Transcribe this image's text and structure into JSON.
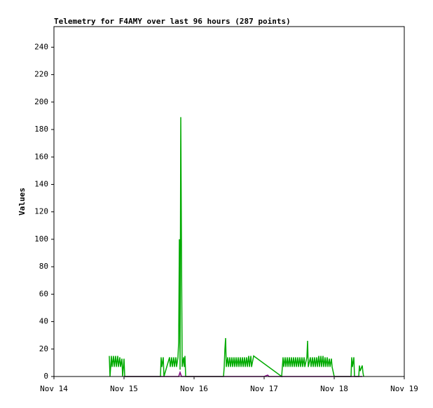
{
  "chart_data": {
    "type": "line",
    "title": "Telemetry for F4AMY over last 96 hours (287 points)",
    "y_label": "Values",
    "xlim": [
      14,
      19
    ],
    "xticks": [
      {
        "value": 14,
        "label": "Nov 14"
      },
      {
        "value": 15,
        "label": "Nov 15"
      },
      {
        "value": 16,
        "label": "Nov 16"
      },
      {
        "value": 17,
        "label": "Nov 17"
      },
      {
        "value": 18,
        "label": "Nov 18"
      },
      {
        "value": 19,
        "label": "Nov 19"
      }
    ],
    "ylim": [
      0,
      255
    ],
    "yticks": [
      0,
      20,
      40,
      60,
      80,
      100,
      120,
      140,
      160,
      180,
      200,
      220,
      240
    ],
    "series": [
      {
        "color": "#00aa00",
        "x": [
          14.79,
          14.8,
          14.82,
          14.83,
          14.85,
          14.86,
          14.88,
          14.89,
          14.91,
          14.92,
          14.94,
          14.95,
          14.97,
          14.98,
          15.0,
          15.01,
          15.52,
          15.53,
          15.54,
          15.56,
          15.57,
          15.65,
          15.66,
          15.68,
          15.69,
          15.71,
          15.72,
          15.74,
          15.75,
          15.77,
          15.78,
          15.79,
          15.8,
          15.81,
          15.82,
          15.83,
          15.85,
          15.86,
          15.87,
          15.88,
          16.42,
          16.43,
          16.44,
          16.45,
          16.46,
          16.48,
          16.49,
          16.51,
          16.52,
          16.54,
          16.55,
          16.57,
          16.58,
          16.6,
          16.61,
          16.63,
          16.64,
          16.66,
          16.67,
          16.69,
          16.7,
          16.72,
          16.73,
          16.75,
          16.76,
          16.78,
          16.79,
          16.81,
          16.82,
          16.85,
          17.25,
          17.27,
          17.28,
          17.3,
          17.31,
          17.33,
          17.34,
          17.36,
          17.37,
          17.39,
          17.4,
          17.42,
          17.43,
          17.45,
          17.46,
          17.48,
          17.49,
          17.51,
          17.52,
          17.54,
          17.55,
          17.57,
          17.58,
          17.61,
          17.62,
          17.63,
          17.66,
          17.67,
          17.69,
          17.7,
          17.72,
          17.73,
          17.75,
          17.76,
          17.78,
          17.79,
          17.81,
          17.82,
          17.84,
          17.85,
          17.87,
          17.88,
          17.9,
          17.91,
          17.93,
          17.94,
          17.96,
          17.97,
          18.0,
          18.24,
          18.25,
          18.26,
          18.28,
          18.29,
          18.35,
          18.36,
          18.37,
          18.4,
          18.41,
          18.42
        ],
        "values": [
          15,
          0,
          15,
          7,
          15,
          7,
          15,
          7,
          15,
          7,
          14,
          7,
          13,
          0,
          13,
          0,
          0,
          14,
          7,
          14,
          0,
          14,
          7,
          14,
          7,
          14,
          7,
          14,
          7,
          14,
          25,
          100,
          5,
          189,
          95,
          7,
          14,
          7,
          15,
          0,
          0,
          7,
          20,
          28,
          7,
          14,
          7,
          14,
          7,
          14,
          7,
          14,
          7,
          14,
          7,
          14,
          7,
          14,
          7,
          14,
          7,
          14,
          7,
          14,
          7,
          15,
          7,
          15,
          7,
          15,
          0,
          14,
          7,
          14,
          7,
          14,
          7,
          14,
          7,
          14,
          7,
          14,
          7,
          14,
          7,
          14,
          7,
          14,
          7,
          14,
          7,
          14,
          7,
          14,
          26,
          7,
          14,
          7,
          14,
          7,
          14,
          7,
          14,
          7,
          15,
          7,
          15,
          7,
          15,
          7,
          14,
          7,
          14,
          7,
          13,
          7,
          13,
          7,
          0,
          0,
          14,
          7,
          14,
          0,
          0,
          8,
          4,
          8,
          3,
          0
        ]
      },
      {
        "color": "#800080",
        "x": [
          15.0,
          15.78,
          15.8,
          15.82,
          16.0,
          17.0,
          17.05,
          17.07,
          18.4
        ],
        "values": [
          0,
          0,
          3,
          0,
          0,
          0,
          1,
          0,
          0
        ]
      }
    ]
  }
}
